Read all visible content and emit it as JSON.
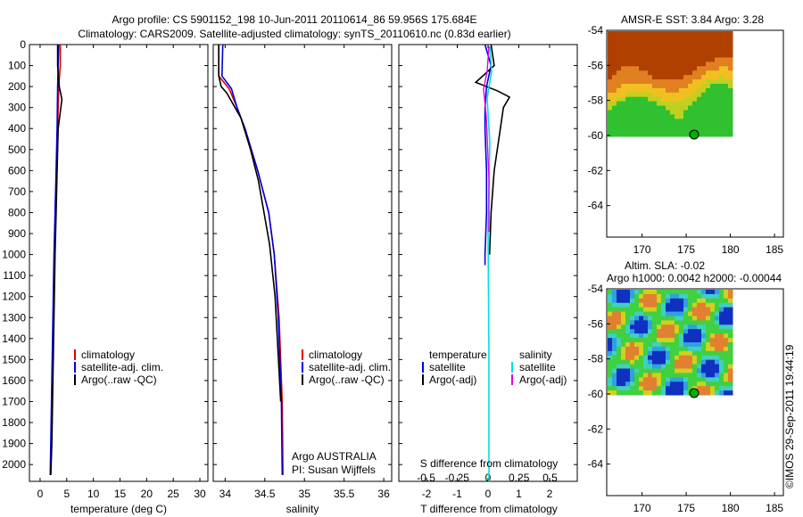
{
  "title": {
    "line1": "Argo profile: CS 5901152_198 10-Jun-2011 20110614_86 59.956S 175.684E",
    "line2": "Climatology: CARS2009. Satellite-adjusted climatology: synTS_20110610.nc (0.83d earlier)"
  },
  "colors": {
    "climatology": "#e00000",
    "satellite_adj": "#0000e0",
    "argo": "#000000",
    "salinity_satellite": "#00e0e0",
    "salinity_argo": "#e000e0",
    "marker_fill": "#00b000"
  },
  "depth_ticks": [
    "0",
    "100",
    "200",
    "300",
    "400",
    "500",
    "600",
    "700",
    "800",
    "900",
    "1000",
    "1100",
    "1200",
    "1300",
    "1400",
    "1500",
    "1600",
    "1700",
    "1800",
    "1900",
    "2000"
  ],
  "temperature_panel": {
    "xlabel": "temperature (deg C)",
    "xticks": [
      "0",
      "5",
      "10",
      "15",
      "20",
      "25",
      "30"
    ],
    "legend": [
      "climatology",
      "satellite-adj. clim.",
      "Argo(..raw -QC)"
    ]
  },
  "salinity_panel": {
    "xlabel": "salinity",
    "xticks": [
      "34",
      "34.5",
      "35",
      "35.5",
      "36"
    ],
    "legend": [
      "climatology",
      "satellite-adj. clim.",
      "Argo(..raw -QC)"
    ],
    "note1": "Argo AUSTRALIA",
    "note2": "PI: Susan Wijffels"
  },
  "diff_panel": {
    "xlabel": "T difference from climatology",
    "top_label": "S difference from climatology",
    "top_ticks": [
      "-0.5",
      "-0.25",
      "0",
      "0.25",
      "0.5"
    ],
    "xticks": [
      "-2",
      "-1",
      "0",
      "1",
      "2"
    ],
    "legend_t_head": "temperature",
    "legend_s_head": "salinity",
    "legend_t": [
      "satellite",
      "Argo(-adj)"
    ],
    "legend_s": [
      "satellite",
      "Argo(-adj)"
    ]
  },
  "sst_map": {
    "title": "AMSR-E SST: 3.84 Argo: 3.28",
    "yticks": [
      "-54",
      "-56",
      "-58",
      "-60",
      "-62",
      "-64"
    ],
    "xticks": [
      "170",
      "175",
      "180",
      "185"
    ]
  },
  "sla_map": {
    "title1": "Altim. SLA: -0.02",
    "title2": "Argo h1000: 0.0042 h2000: -0.00044",
    "yticks": [
      "-54",
      "-56",
      "-58",
      "-60",
      "-62",
      "-64"
    ],
    "xticks": [
      "170",
      "175",
      "180",
      "185"
    ]
  },
  "credit": "©IMOS 29-Sep-2011 19:44:19",
  "chart_data": [
    {
      "type": "line",
      "xlabel": "temperature (deg C)",
      "ylabel": "",
      "xlim": [
        -2,
        31.5
      ],
      "ylim": [
        2080,
        0
      ],
      "series": [
        {
          "name": "climatology",
          "x": [
            3.8,
            3.8,
            3.5,
            3.3,
            3.1,
            2.9,
            2.7,
            2.5,
            2.3,
            2.1,
            2.0
          ],
          "y": [
            0,
            100,
            200,
            400,
            600,
            800,
            1000,
            1300,
            1600,
            1900,
            2050
          ]
        },
        {
          "name": "satellite-adj. clim.",
          "x": [
            3.5,
            3.4,
            3.3,
            3.2,
            3.0,
            2.8,
            2.6,
            2.4,
            2.2,
            2.0,
            1.9
          ],
          "y": [
            0,
            100,
            200,
            400,
            600,
            800,
            1000,
            1300,
            1600,
            1900,
            2050
          ]
        },
        {
          "name": "Argo(..raw -QC)",
          "x": [
            3.3,
            3.3,
            3.6,
            4.1,
            3.8,
            3.4,
            3.2,
            3.0,
            2.8,
            2.6,
            2.4,
            2.2,
            2.0
          ],
          "y": [
            0,
            100,
            200,
            260,
            320,
            400,
            600,
            800,
            1000,
            1300,
            1600,
            1900,
            2050
          ]
        }
      ]
    },
    {
      "type": "line",
      "xlabel": "salinity",
      "ylabel": "",
      "xlim": [
        33.85,
        36.1
      ],
      "ylim": [
        2080,
        0
      ],
      "series": [
        {
          "name": "climatology",
          "x": [
            33.92,
            33.92,
            34.05,
            34.15,
            34.25,
            34.33,
            34.41,
            34.48,
            34.55,
            34.62,
            34.68,
            34.72,
            34.73
          ],
          "y": [
            0,
            150,
            210,
            300,
            400,
            500,
            600,
            700,
            800,
            1000,
            1300,
            1700,
            2050
          ]
        },
        {
          "name": "satellite-adj. clim.",
          "x": [
            33.97,
            33.96,
            34.08,
            34.15,
            34.25,
            34.33,
            34.41,
            34.48,
            34.55,
            34.62,
            34.67,
            34.71,
            34.72
          ],
          "y": [
            0,
            150,
            210,
            300,
            400,
            500,
            600,
            700,
            800,
            1000,
            1300,
            1700,
            2050
          ]
        },
        {
          "name": "Argo(..raw -QC)",
          "x": [
            33.92,
            33.92,
            33.95,
            34.02,
            34.2,
            34.32,
            34.42,
            34.49,
            34.56,
            34.63,
            34.7
          ],
          "y": [
            0,
            150,
            200,
            230,
            350,
            500,
            650,
            800,
            950,
            1200,
            1700
          ]
        }
      ]
    },
    {
      "type": "line",
      "xlabel": "T difference from climatology",
      "ylabel": "",
      "xlim": [
        -2.9,
        2.9
      ],
      "ylim": [
        2080,
        0
      ],
      "series": [
        {
          "name": "satellite",
          "x": [
            -0.1,
            0.1,
            -0.05,
            -0.1,
            -0.1,
            -0.05,
            -0.05,
            -0.1,
            -0.1
          ],
          "y": [
            0,
            100,
            200,
            300,
            400,
            600,
            800,
            1000,
            1050
          ]
        },
        {
          "name": "Argo(-adj)",
          "x": [
            0.1,
            0.2,
            -0.4,
            0.3,
            0.7,
            0.5,
            0.4,
            0.2,
            0.1,
            0.05
          ],
          "y": [
            0,
            100,
            180,
            220,
            250,
            300,
            400,
            600,
            800,
            1000
          ]
        }
      ]
    }
  ]
}
